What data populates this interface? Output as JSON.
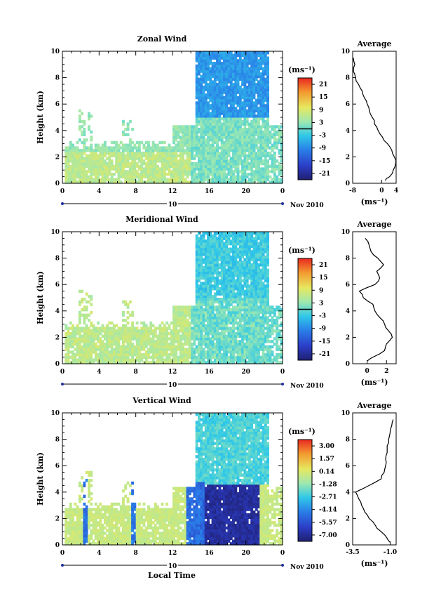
{
  "figure": {
    "xlabel": "Local Time",
    "date_label": "Nov 2010",
    "day_label": "10",
    "avg_title": "Average",
    "ylabel": "Height (km)",
    "unit_label": "(ms⁻¹)"
  },
  "chart_data": [
    {
      "type": "heatmap",
      "title": "Zonal Wind",
      "xlabel": "Local Time",
      "ylabel": "Height (km)",
      "x_ticks": [
        "0",
        "4",
        "8",
        "12",
        "16",
        "20",
        "0"
      ],
      "y_ticks": [
        "0",
        "2",
        "4",
        "6",
        "8",
        "10"
      ],
      "xlim": [
        0,
        24
      ],
      "ylim": [
        0,
        10
      ],
      "colorbar": {
        "unit": "(ms⁻¹)",
        "ticks": [
          "21",
          "15",
          "9",
          "3",
          "-3",
          "-9",
          "-15",
          "-21"
        ],
        "range": [
          -24,
          24
        ],
        "contour_level": 0
      },
      "average_profile": {
        "title": "Average",
        "xlabel": "(ms⁻¹)",
        "x_ticks": [
          "-8",
          "0",
          "4"
        ],
        "xlim": [
          -8,
          4
        ],
        "heights": [
          0.2,
          0.5,
          1.0,
          1.5,
          2.0,
          2.5,
          3.0,
          3.5,
          4.0,
          4.5,
          5.0,
          5.5,
          6.0,
          6.5,
          7.0,
          7.5,
          8.0,
          8.5,
          9.0,
          9.5
        ],
        "values": [
          1.0,
          2.2,
          3.2,
          3.9,
          3.5,
          2.8,
          1.6,
          0.2,
          -1.0,
          -2.0,
          -2.6,
          -3.4,
          -4.0,
          -4.8,
          -5.4,
          -6.4,
          -7.2,
          -7.8,
          -7.4,
          -7.8
        ]
      }
    },
    {
      "type": "heatmap",
      "title": "Meridional Wind",
      "xlabel": "Local Time",
      "ylabel": "Height (km)",
      "x_ticks": [
        "0",
        "4",
        "8",
        "12",
        "16",
        "20",
        "0"
      ],
      "y_ticks": [
        "0",
        "2",
        "4",
        "6",
        "8",
        "10"
      ],
      "xlim": [
        0,
        24
      ],
      "ylim": [
        0,
        10
      ],
      "colorbar": {
        "unit": "(ms⁻¹)",
        "ticks": [
          "21",
          "15",
          "9",
          "3",
          "-3",
          "-9",
          "-15",
          "-21"
        ],
        "range": [
          -24,
          24
        ],
        "contour_level": 0
      },
      "average_profile": {
        "title": "Average",
        "xlabel": "(ms⁻¹)",
        "x_ticks": [
          "0",
          "2"
        ],
        "xlim": [
          -1.5,
          3
        ],
        "heights": [
          0.2,
          0.5,
          1.0,
          1.5,
          2.0,
          2.5,
          3.0,
          3.5,
          4.0,
          4.5,
          5.0,
          5.5,
          6.0,
          6.5,
          7.0,
          7.5,
          8.0,
          8.5,
          9.0,
          9.5
        ],
        "values": [
          0.0,
          0.6,
          1.8,
          2.0,
          2.6,
          2.2,
          1.8,
          1.3,
          0.8,
          0.6,
          -0.4,
          -0.8,
          0.8,
          1.3,
          1.0,
          1.7,
          1.1,
          0.4,
          0.2,
          -0.2
        ]
      }
    },
    {
      "type": "heatmap",
      "title": "Vertical Wind",
      "xlabel": "Local Time",
      "ylabel": "Height (km)",
      "x_ticks": [
        "0",
        "4",
        "8",
        "12",
        "16",
        "20",
        "0"
      ],
      "y_ticks": [
        "0",
        "2",
        "4",
        "6",
        "8",
        "10"
      ],
      "xlim": [
        0,
        24
      ],
      "ylim": [
        0,
        10
      ],
      "colorbar": {
        "unit": "(ms⁻¹)",
        "ticks": [
          "3.00",
          "1.57",
          "0.14",
          "-1.28",
          "-2.71",
          "-4.14",
          "-5.57",
          "-7.00"
        ],
        "range": [
          -8.0,
          4.0
        ]
      },
      "average_profile": {
        "title": "Average",
        "xlabel": "(ms⁻¹)",
        "x_ticks": [
          "-3.5",
          "-1.0"
        ],
        "xlim": [
          -3.5,
          -0.6
        ],
        "heights": [
          0.2,
          0.5,
          1.0,
          1.5,
          2.0,
          2.5,
          3.0,
          3.5,
          4.0,
          4.5,
          5.0,
          5.5,
          6.0,
          6.5,
          7.0,
          7.5,
          8.0,
          8.5,
          9.0,
          9.5
        ],
        "values": [
          -1.0,
          -1.2,
          -1.6,
          -2.0,
          -2.4,
          -2.7,
          -2.9,
          -3.1,
          -3.3,
          -2.4,
          -1.6,
          -1.4,
          -1.3,
          -1.3,
          -1.2,
          -1.2,
          -1.1,
          -1.0,
          -0.9,
          -0.8
        ]
      }
    }
  ]
}
